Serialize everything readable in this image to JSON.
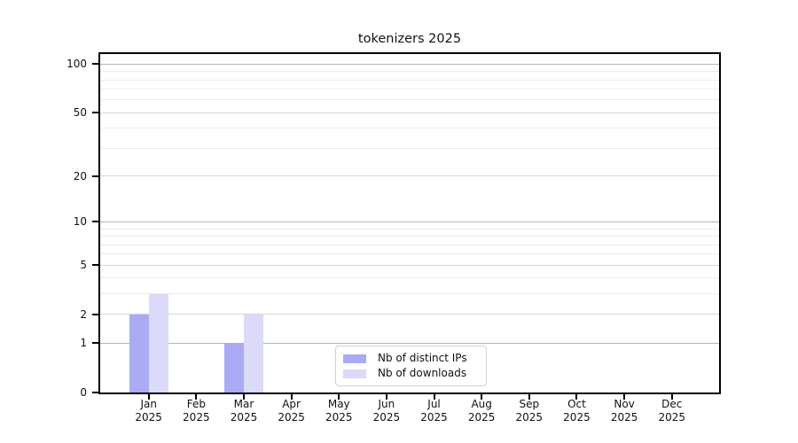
{
  "chart_data": {
    "type": "bar",
    "title": "tokenizers 2025",
    "categories": [
      "Jan 2025",
      "Feb 2025",
      "Mar 2025",
      "Apr 2025",
      "May 2025",
      "Jun 2025",
      "Jul 2025",
      "Aug 2025",
      "Sep 2025",
      "Oct 2025",
      "Nov 2025",
      "Dec 2025"
    ],
    "x_tick_line1": [
      "Jan",
      "Feb",
      "Mar",
      "Apr",
      "May",
      "Jun",
      "Jul",
      "Aug",
      "Sep",
      "Oct",
      "Nov",
      "Dec"
    ],
    "x_tick_line2": [
      "2025",
      "2025",
      "2025",
      "2025",
      "2025",
      "2025",
      "2025",
      "2025",
      "2025",
      "2025",
      "2025",
      "2025"
    ],
    "series": [
      {
        "name": "Nb of distinct IPs",
        "color": "#aaaaf5",
        "values": [
          2,
          0,
          1,
          0,
          0,
          0,
          0,
          0,
          0,
          0,
          0,
          0
        ]
      },
      {
        "name": "Nb of downloads",
        "color": "#dbdaf8",
        "values": [
          3,
          0,
          2,
          0,
          0,
          0,
          0,
          0,
          0,
          0,
          0,
          0
        ]
      }
    ],
    "yscale": "log1p",
    "ylim": [
      0,
      115
    ],
    "y_major_ticks": [
      0,
      1,
      2,
      5,
      10,
      20,
      50,
      100
    ],
    "y_decade_ticks": [
      1,
      10,
      100
    ],
    "y_minor_ticks": [
      3,
      4,
      6,
      7,
      8,
      9,
      30,
      40,
      60,
      70,
      80,
      90
    ],
    "grid": "horizontal",
    "legend_position": "inside bottom-center"
  },
  "legend": {
    "items": [
      {
        "label": "Nb of distinct IPs",
        "color": "#aaaaf5"
      },
      {
        "label": "Nb of downloads",
        "color": "#dbdaf8"
      }
    ]
  },
  "colors": {
    "distinct_ips": "#aaaaf5",
    "downloads": "#dbdaf8",
    "spine": "#000000",
    "grid_decade": "#b4b4b4",
    "grid_major": "#d6d6d6",
    "grid_minor": "#ececec",
    "background": "#ffffff"
  }
}
